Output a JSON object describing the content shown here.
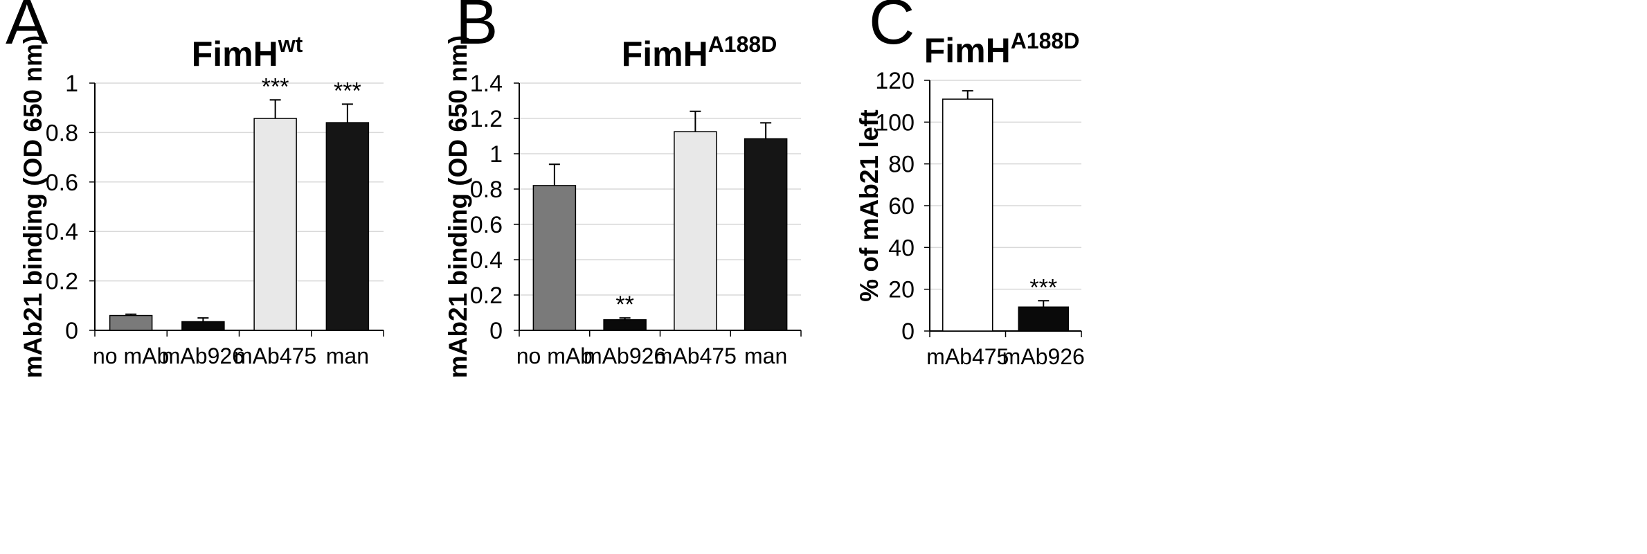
{
  "chart_data": [
    {
      "panel": "A",
      "type": "bar",
      "title": "FimH",
      "title_superscript": "wt",
      "ylabel": "mAb21 binding (OD 650 nm)",
      "xlabel": "",
      "ylim": [
        0,
        1
      ],
      "yticks": [
        0,
        0.2,
        0.4,
        0.6,
        0.8,
        1
      ],
      "ytick_labels": [
        "0",
        "0.2",
        "0.4",
        "0.6",
        "0.8",
        "1"
      ],
      "grid": true,
      "categories": [
        "no mAb",
        "mAb926",
        "mAb475",
        "man"
      ],
      "values": [
        0.06,
        0.035,
        0.857,
        0.84
      ],
      "errors": [
        0.005,
        0.015,
        0.075,
        0.075
      ],
      "colors": [
        "#7a7a7a",
        "#0a0a0a",
        "#e8e8e8",
        "#151515"
      ],
      "significance": [
        "",
        "",
        "***",
        "***"
      ]
    },
    {
      "panel": "B",
      "type": "bar",
      "title": "FimH",
      "title_superscript": "A188D",
      "ylabel": "mAb21 binding (OD 650 nm)",
      "xlabel": "",
      "ylim": [
        0,
        1.4
      ],
      "yticks": [
        0,
        0.2,
        0.4,
        0.6,
        0.8,
        1,
        1.2,
        1.4
      ],
      "ytick_labels": [
        "0",
        "0.2",
        "0.4",
        "0.6",
        "0.8",
        "1",
        "1.2",
        "1.4"
      ],
      "grid": true,
      "categories": [
        "no mAb",
        "mAb926",
        "mAb475",
        "man"
      ],
      "values": [
        0.82,
        0.06,
        1.125,
        1.085
      ],
      "errors": [
        0.12,
        0.01,
        0.115,
        0.09
      ],
      "colors": [
        "#7a7a7a",
        "#0a0a0a",
        "#e8e8e8",
        "#151515"
      ],
      "significance": [
        "",
        "**",
        "",
        ""
      ]
    },
    {
      "panel": "C",
      "type": "bar",
      "title": "FimH",
      "title_superscript": "A188D",
      "ylabel": "% of mAb21 left",
      "xlabel": "",
      "ylim": [
        0,
        120
      ],
      "yticks": [
        0,
        20,
        40,
        60,
        80,
        100,
        120
      ],
      "ytick_labels": [
        "0",
        "20",
        "40",
        "60",
        "80",
        "100",
        "120"
      ],
      "grid": true,
      "categories": [
        "mAb475",
        "mAb926"
      ],
      "values": [
        111,
        11.5
      ],
      "errors": [
        4,
        3
      ],
      "colors": [
        "#ffffff",
        "#0a0a0a"
      ],
      "significance": [
        "",
        "***"
      ]
    }
  ]
}
